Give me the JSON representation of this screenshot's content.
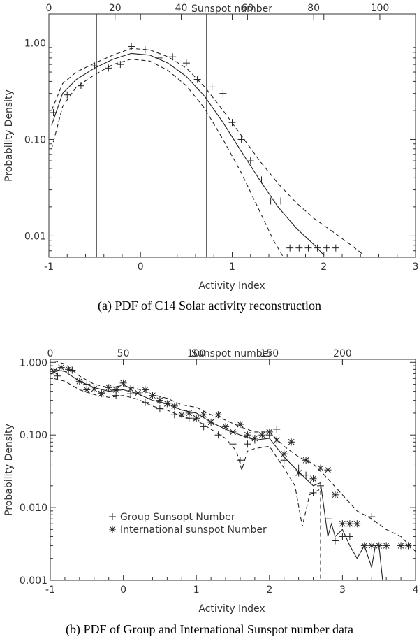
{
  "chart_data": [
    {
      "type": "line",
      "caption": "(a)  PDF of C14 Solar activity reconstruction",
      "xlabel": "Activity Index",
      "ylabel": "Probability Density",
      "top_xlabel": "Sunspot number",
      "xlim": [
        -1,
        3
      ],
      "ylim": [
        0.006,
        2.0
      ],
      "yscale": "log",
      "x_ticks": [
        "-1",
        "0",
        "1",
        "2",
        "3"
      ],
      "y_ticks": [
        "0.01",
        "0.10",
        "1.00"
      ],
      "top_ticks": [
        "0",
        "20",
        "40",
        "60",
        "80",
        "100"
      ],
      "top_axis_map": {
        "sunspot_values": [
          0,
          20,
          40,
          60,
          80,
          100
        ],
        "activity_index": [
          -1,
          -0.278,
          0.444,
          1.167,
          1.889,
          2.611
        ]
      },
      "vertical_lines": [
        -0.48,
        0.72
      ],
      "series": [
        {
          "name": "fit",
          "style": "solid",
          "x": [
            -0.97,
            -0.85,
            -0.7,
            -0.5,
            -0.3,
            -0.1,
            0.1,
            0.3,
            0.5,
            0.7,
            0.9,
            1.1,
            1.3,
            1.5,
            1.7,
            1.9,
            2.0
          ],
          "y": [
            0.14,
            0.3,
            0.42,
            0.55,
            0.68,
            0.78,
            0.75,
            0.62,
            0.45,
            0.28,
            0.15,
            0.075,
            0.038,
            0.02,
            0.012,
            0.008,
            0.0063
          ]
        },
        {
          "name": "upper",
          "style": "dashed",
          "x": [
            -0.97,
            -0.85,
            -0.7,
            -0.5,
            -0.3,
            -0.1,
            0.1,
            0.3,
            0.5,
            0.7,
            0.9,
            1.1,
            1.3,
            1.5,
            1.7,
            1.9,
            2.1,
            2.3,
            2.42
          ],
          "y": [
            0.2,
            0.38,
            0.5,
            0.62,
            0.75,
            0.88,
            0.85,
            0.72,
            0.55,
            0.35,
            0.2,
            0.11,
            0.06,
            0.035,
            0.022,
            0.015,
            0.011,
            0.008,
            0.0065
          ]
        },
        {
          "name": "lower",
          "style": "dashed",
          "x": [
            -0.97,
            -0.85,
            -0.7,
            -0.5,
            -0.3,
            -0.1,
            0.1,
            0.3,
            0.5,
            0.7,
            0.9,
            1.1,
            1.3,
            1.45,
            1.55
          ],
          "y": [
            0.08,
            0.22,
            0.35,
            0.47,
            0.6,
            0.68,
            0.65,
            0.52,
            0.36,
            0.21,
            0.1,
            0.045,
            0.018,
            0.009,
            0.0062
          ]
        },
        {
          "name": "data",
          "style": "plus",
          "x": [
            -0.95,
            -0.8,
            -0.65,
            -0.5,
            -0.35,
            -0.22,
            -0.1,
            0.05,
            0.2,
            0.35,
            0.5,
            0.62,
            0.78,
            0.9,
            1.0,
            1.1,
            1.2,
            1.32,
            1.42,
            1.53,
            1.63,
            1.73,
            1.83,
            1.93,
            2.03,
            2.13
          ],
          "y": [
            0.19,
            0.29,
            0.36,
            0.58,
            0.55,
            0.6,
            0.92,
            0.85,
            0.7,
            0.72,
            0.62,
            0.42,
            0.35,
            0.3,
            0.15,
            0.1,
            0.06,
            0.038,
            0.023,
            0.023,
            0.0075,
            0.0075,
            0.0075,
            0.0075,
            0.0075,
            0.0075
          ]
        }
      ]
    },
    {
      "type": "line",
      "caption": "(b)  PDF of Group and International Sunspot number data",
      "xlabel": "Activity Index",
      "ylabel": "Probability Density",
      "top_xlabel": "Sunspot number",
      "xlim": [
        -1,
        4
      ],
      "ylim": [
        0.001,
        1.1
      ],
      "yscale": "log",
      "x_ticks": [
        "-1",
        "0",
        "1",
        "2",
        "3",
        "4"
      ],
      "y_ticks": [
        "0.001",
        "0.010",
        "0.100",
        "1.000"
      ],
      "top_ticks": [
        "0",
        "50",
        "100",
        "150",
        "200"
      ],
      "top_axis_map": {
        "sunspot_values": [
          0,
          50,
          100,
          150,
          200
        ],
        "activity_index": [
          -1,
          0.0,
          1.0,
          2.0,
          3.0
        ]
      },
      "legend": [
        "Group Sunsopt Number",
        "International sunspot Number"
      ],
      "series": [
        {
          "name": "fit",
          "style": "solid",
          "x": [
            -0.95,
            -0.8,
            -0.6,
            -0.4,
            -0.2,
            0.0,
            0.2,
            0.4,
            0.6,
            0.8,
            1.0,
            1.2,
            1.4,
            1.6,
            1.8,
            2.0,
            2.2,
            2.35,
            2.5,
            2.6,
            2.7,
            2.8,
            2.85,
            2.9,
            3.0,
            3.1,
            3.2,
            3.3,
            3.4,
            3.45,
            3.5,
            3.55
          ],
          "y": [
            0.8,
            0.75,
            0.55,
            0.45,
            0.4,
            0.42,
            0.37,
            0.3,
            0.27,
            0.22,
            0.2,
            0.15,
            0.12,
            0.1,
            0.085,
            0.09,
            0.05,
            0.035,
            0.025,
            0.02,
            0.022,
            0.004,
            0.006,
            0.004,
            0.005,
            0.003,
            0.002,
            0.003,
            0.0015,
            0.003,
            0.003,
            0.001
          ]
        },
        {
          "name": "upper",
          "style": "dashed",
          "x": [
            -0.95,
            -0.8,
            -0.6,
            -0.4,
            -0.2,
            0.0,
            0.2,
            0.4,
            0.6,
            0.8,
            1.0,
            1.2,
            1.4,
            1.6,
            1.8,
            2.0,
            2.2,
            2.4,
            2.6,
            2.8,
            3.0,
            3.2,
            3.4,
            3.6,
            3.8,
            4.0
          ],
          "y": [
            1.05,
            0.95,
            0.65,
            0.5,
            0.45,
            0.48,
            0.43,
            0.36,
            0.32,
            0.26,
            0.24,
            0.19,
            0.16,
            0.13,
            0.11,
            0.11,
            0.07,
            0.05,
            0.04,
            0.025,
            0.015,
            0.009,
            0.007,
            0.005,
            0.004,
            0.0025
          ]
        },
        {
          "name": "lower",
          "style": "dashed",
          "x": [
            -0.95,
            -0.8,
            -0.6,
            -0.4,
            -0.2,
            0.0,
            0.2,
            0.4,
            0.6,
            0.8,
            1.0,
            1.2,
            1.4,
            1.55,
            1.62,
            1.7,
            1.8,
            2.0,
            2.2,
            2.35,
            2.45,
            2.55,
            2.7,
            2.7
          ],
          "y": [
            0.6,
            0.55,
            0.42,
            0.36,
            0.33,
            0.35,
            0.31,
            0.25,
            0.22,
            0.18,
            0.16,
            0.12,
            0.09,
            0.06,
            0.033,
            0.06,
            0.065,
            0.07,
            0.035,
            0.02,
            0.0055,
            0.015,
            0.018,
            0.001
          ]
        },
        {
          "name": "Group Sunsopt Number",
          "style": "plus",
          "x": [
            -0.9,
            -0.7,
            -0.5,
            -0.3,
            -0.1,
            0.1,
            0.3,
            0.5,
            0.7,
            0.9,
            1.1,
            1.3,
            1.5,
            1.6,
            1.7,
            1.8,
            2.0,
            2.1,
            2.2,
            2.4,
            2.5,
            2.6,
            2.7,
            2.8,
            2.9,
            3.0,
            3.1,
            3.4
          ],
          "y": [
            0.65,
            0.78,
            0.5,
            0.38,
            0.35,
            0.37,
            0.28,
            0.23,
            0.19,
            0.17,
            0.13,
            0.1,
            0.075,
            0.045,
            0.075,
            0.085,
            0.1,
            0.12,
            0.045,
            0.035,
            0.028,
            0.016,
            0.02,
            0.007,
            0.0035,
            0.004,
            0.004,
            0.0075
          ]
        },
        {
          "name": "International sunspot Number",
          "style": "star",
          "x": [
            -0.95,
            -0.85,
            -0.75,
            -0.6,
            -0.5,
            -0.4,
            -0.3,
            -0.2,
            -0.1,
            0.0,
            0.1,
            0.2,
            0.3,
            0.4,
            0.5,
            0.6,
            0.7,
            0.8,
            0.9,
            1.0,
            1.1,
            1.2,
            1.3,
            1.4,
            1.5,
            1.6,
            1.7,
            1.8,
            1.9,
            2.0,
            2.1,
            2.2,
            2.3,
            2.4,
            2.5,
            2.6,
            2.7,
            2.8,
            2.9,
            3.0,
            3.1,
            3.2,
            3.3,
            3.4,
            3.5,
            3.6,
            3.8,
            3.9
          ],
          "y": [
            0.75,
            0.85,
            0.8,
            0.55,
            0.42,
            0.43,
            0.37,
            0.45,
            0.42,
            0.52,
            0.43,
            0.38,
            0.42,
            0.35,
            0.3,
            0.27,
            0.25,
            0.19,
            0.2,
            0.17,
            0.19,
            0.15,
            0.19,
            0.13,
            0.11,
            0.14,
            0.1,
            0.09,
            0.1,
            0.11,
            0.085,
            0.055,
            0.08,
            0.03,
            0.045,
            0.025,
            0.035,
            0.033,
            0.015,
            0.006,
            0.006,
            0.006,
            0.003,
            0.003,
            0.003,
            0.003,
            0.003,
            0.003
          ]
        }
      ]
    }
  ]
}
